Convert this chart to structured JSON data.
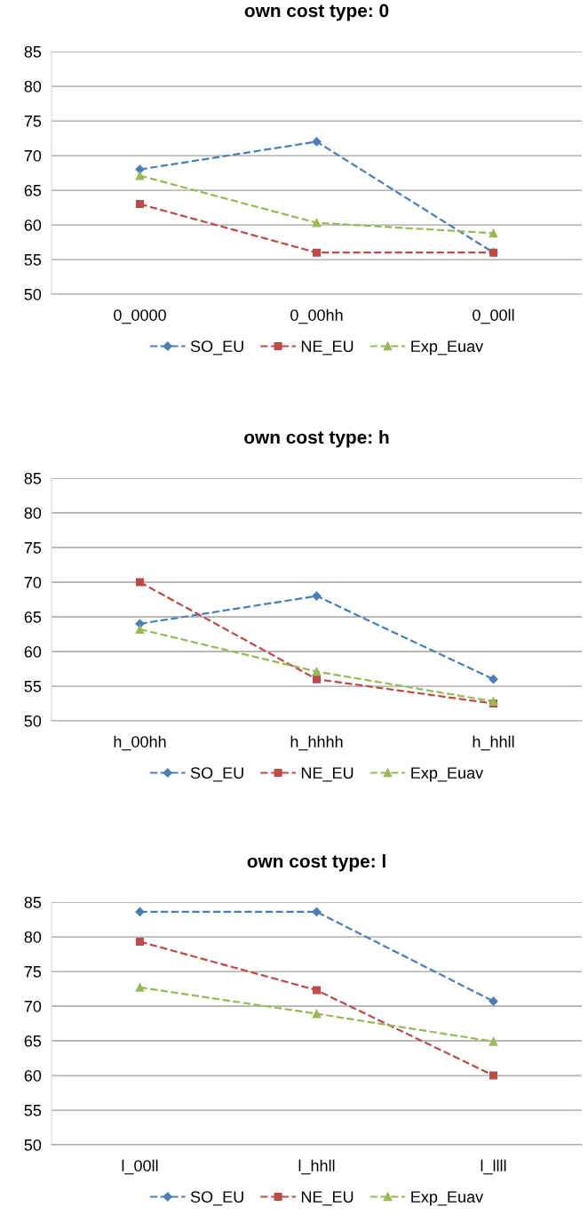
{
  "chart_data": [
    {
      "type": "line",
      "title": "own cost type: 0",
      "categories": [
        "0_0000",
        "0_00hh",
        "0_00ll"
      ],
      "ylim": [
        50,
        85
      ],
      "yticks": [
        50,
        55,
        60,
        65,
        70,
        75,
        80,
        85
      ],
      "grid": "y",
      "legend": "bottom",
      "line_style": "dashed",
      "series": [
        {
          "name": "SO_EU",
          "color": "#4a7ebb",
          "marker": "diamond",
          "values": [
            68,
            72,
            56
          ]
        },
        {
          "name": "NE_EU",
          "color": "#be4b48",
          "marker": "square",
          "values": [
            63,
            56,
            56
          ]
        },
        {
          "name": "Exp_Euav",
          "color": "#98b954",
          "marker": "triangle",
          "values": [
            67.1,
            60.3,
            58.8
          ]
        }
      ]
    },
    {
      "type": "line",
      "title": "own cost type: h",
      "categories": [
        "h_00hh",
        "h_hhhh",
        "h_hhll"
      ],
      "ylim": [
        50,
        85
      ],
      "yticks": [
        50,
        55,
        60,
        65,
        70,
        75,
        80,
        85
      ],
      "grid": "y",
      "legend": "bottom",
      "line_style": "dashed",
      "series": [
        {
          "name": "SO_EU",
          "color": "#4a7ebb",
          "marker": "diamond",
          "values": [
            64,
            68,
            56
          ]
        },
        {
          "name": "NE_EU",
          "color": "#be4b48",
          "marker": "square",
          "values": [
            70,
            56,
            52.5
          ]
        },
        {
          "name": "Exp_Euav",
          "color": "#98b954",
          "marker": "triangle",
          "values": [
            63.2,
            57.1,
            52.8
          ]
        }
      ]
    },
    {
      "type": "line",
      "title": "own cost type: l",
      "categories": [
        "l_00ll",
        "l_hhll",
        "l_llll"
      ],
      "ylim": [
        50,
        85
      ],
      "yticks": [
        50,
        55,
        60,
        65,
        70,
        75,
        80,
        85
      ],
      "grid": "y",
      "legend": "bottom",
      "line_style": "dashed",
      "series": [
        {
          "name": "SO_EU",
          "color": "#4a7ebb",
          "marker": "diamond",
          "values": [
            83.6,
            83.6,
            70.7
          ]
        },
        {
          "name": "NE_EU",
          "color": "#be4b48",
          "marker": "square",
          "values": [
            79.3,
            72.3,
            60
          ]
        },
        {
          "name": "Exp_Euav",
          "color": "#98b954",
          "marker": "triangle",
          "values": [
            72.7,
            68.9,
            64.9
          ]
        }
      ]
    }
  ]
}
